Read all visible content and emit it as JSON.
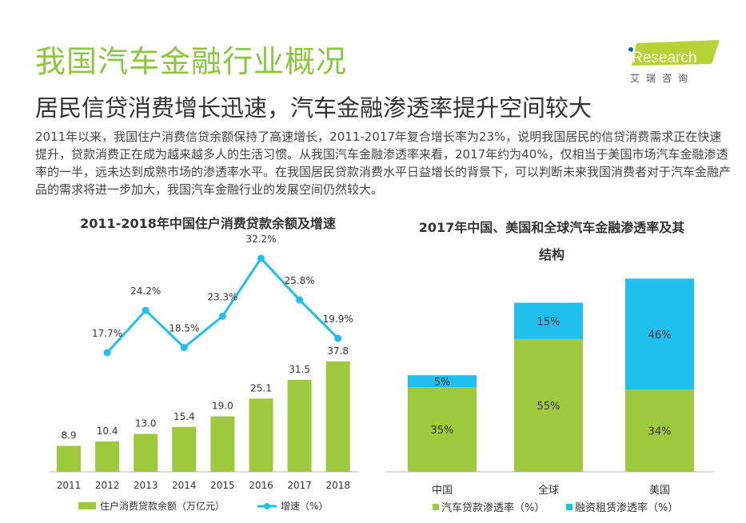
{
  "header": {
    "title": "我国汽车金融行业概况",
    "subtitle": "居民信贷消费增长迅速，汽车金融渗透率提升空间较大",
    "paragraph": "2011年以来，我国住户消费信贷余额保持了高速增长，2011-2017年复合增长率为23%，说明我国居民的信贷消费需求正在快速提升，贷款消费正在成为越来越多人的生活习惯。从我国汽车金融渗透率来看，2017年约为40%，仅相当于美国市场汽车金融渗透率的一半，远未达到成熟市场的渗透率水平。在我国居民贷款消费水平日益增长的背景下，可以判断未来我国消费者对于汽车金融产品的需求将进一步加大，我国汽车金融行业的发展空间仍然较大。"
  },
  "logo": {
    "text": "iResearch",
    "sub": "艾 瑞 咨 询"
  },
  "colors": {
    "green": "#9fc93c",
    "blue": "#1fbfee",
    "title_green": "#8cc63f"
  },
  "chart_data": [
    {
      "type": "bar+line",
      "title": "2011-2018年中国住户消费贷款余额及增速",
      "categories": [
        "2011",
        "2012",
        "2013",
        "2014",
        "2015",
        "2016",
        "2017",
        "2018"
      ],
      "series": [
        {
          "name": "住户消费贷款余额（万亿元）",
          "type": "bar",
          "values": [
            8.9,
            10.4,
            13.0,
            15.4,
            19.0,
            25.1,
            31.5,
            37.8
          ],
          "labels": [
            "8.9",
            "10.4",
            "13.0",
            "15.4",
            "19.0",
            "25.1",
            "31.5",
            "37.8"
          ]
        },
        {
          "name": "增速（%）",
          "type": "line",
          "values": [
            null,
            17.7,
            24.2,
            18.5,
            23.3,
            32.2,
            25.8,
            19.9
          ],
          "labels": [
            "",
            "17.7%",
            "24.2%",
            "18.5%",
            "23.3%",
            "32.2%",
            "25.8%",
            "19.9%"
          ]
        }
      ],
      "legend": "bottom"
    },
    {
      "type": "stacked-bar",
      "title": "2017年中国、美国和全球汽车金融渗透率及其结构",
      "categories": [
        "中国",
        "全球",
        "美国"
      ],
      "series": [
        {
          "name": "汽车贷款渗透率（%）",
          "values": [
            35,
            55,
            34
          ],
          "labels": [
            "35%",
            "55%",
            "34%"
          ]
        },
        {
          "name": "融资租赁渗透率（%）",
          "values": [
            5,
            15,
            46
          ],
          "labels": [
            "5%",
            "15%",
            "46%"
          ]
        }
      ],
      "legend": "bottom"
    }
  ]
}
